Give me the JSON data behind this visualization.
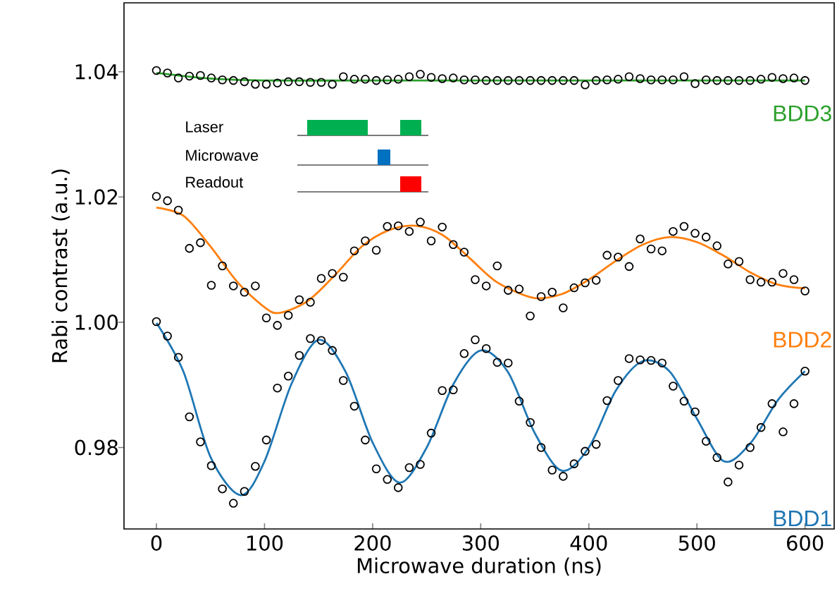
{
  "chart_data": {
    "type": "scatter",
    "xlabel": "Microwave duration (ns)",
    "ylabel": "Rabi contrast (a.u.)",
    "x": [
      0,
      10.2,
      20.3,
      30.5,
      40.7,
      50.8,
      61.0,
      71.2,
      81.4,
      91.5,
      101.7,
      111.9,
      122.0,
      132.2,
      142.4,
      152.5,
      162.7,
      172.9,
      183.1,
      193.2,
      203.4,
      213.6,
      223.7,
      233.9,
      244.1,
      254.2,
      264.4,
      274.6,
      284.7,
      294.9,
      305.1,
      315.3,
      325.4,
      335.6,
      345.8,
      355.9,
      366.1,
      376.3,
      386.4,
      396.6,
      406.8,
      416.9,
      427.1,
      437.3,
      447.5,
      457.6,
      467.8,
      478.0,
      488.1,
      498.3,
      508.5,
      518.6,
      528.8,
      539.0,
      549.2,
      559.3,
      569.5,
      579.7,
      589.8,
      600
    ],
    "series": [
      {
        "marker": "circle",
        "color": "#000000",
        "values": [
          1.0001,
          0.9978,
          0.9944,
          0.9849,
          0.9809,
          0.9771,
          0.9734,
          0.9711,
          0.973,
          0.977,
          0.9812,
          0.9895,
          0.9914,
          0.9947,
          0.9974,
          0.9971,
          0.9955,
          0.9907,
          0.9866,
          0.9812,
          0.9766,
          0.9749,
          0.9736,
          0.9768,
          0.9773,
          0.9823,
          0.9891,
          0.9892,
          0.995,
          0.9972,
          0.9958,
          0.9936,
          0.9935,
          0.9874,
          0.984,
          0.98,
          0.9764,
          0.9754,
          0.9774,
          0.9794,
          0.9805,
          0.9875,
          0.9907,
          0.9942,
          0.994,
          0.9939,
          0.9935,
          0.9898,
          0.9874,
          0.9857,
          0.981,
          0.9784,
          0.9745,
          0.9772,
          0.98,
          0.9832,
          0.987,
          0.9825,
          0.987,
          0.9922
        ]
      },
      {
        "marker": "circle",
        "color": "#000000",
        "values": [
          1.0201,
          1.0194,
          1.0179,
          1.0118,
          1.0127,
          1.0059,
          1.009,
          1.0058,
          1.0048,
          1.0058,
          1.0007,
          0.9995,
          1.0011,
          1.0036,
          1.0032,
          1.007,
          1.0078,
          1.0072,
          1.0114,
          1.013,
          1.0115,
          1.0153,
          1.0154,
          1.0145,
          1.016,
          1.013,
          1.0152,
          1.0124,
          1.0112,
          1.0068,
          1.0058,
          1.009,
          1.0051,
          1.0053,
          1.001,
          1.0041,
          1.0048,
          1.0023,
          1.0055,
          1.0063,
          1.0067,
          1.0107,
          1.0104,
          1.0089,
          1.0133,
          1.0117,
          1.0114,
          1.0145,
          1.0153,
          1.0142,
          1.0136,
          1.0122,
          1.0093,
          1.0097,
          1.0068,
          1.0064,
          1.0064,
          1.0078,
          1.0068,
          1.005
        ]
      },
      {
        "marker": "circle",
        "color": "#000000",
        "values": [
          1.0402,
          1.0398,
          1.039,
          1.0393,
          1.0394,
          1.039,
          1.0387,
          1.0386,
          1.0384,
          1.038,
          1.038,
          1.0382,
          1.0384,
          1.0384,
          1.0383,
          1.0383,
          1.038,
          1.0392,
          1.0388,
          1.0388,
          1.0386,
          1.0387,
          1.0388,
          1.0392,
          1.0396,
          1.0391,
          1.0389,
          1.039,
          1.0387,
          1.0387,
          1.0386,
          1.0386,
          1.0386,
          1.0386,
          1.0386,
          1.0386,
          1.0386,
          1.0386,
          1.0386,
          1.0379,
          1.0386,
          1.0387,
          1.0388,
          1.0392,
          1.0389,
          1.0387,
          1.0387,
          1.0387,
          1.0392,
          1.0381,
          1.0387,
          1.0386,
          1.0386,
          1.0386,
          1.0386,
          1.0388,
          1.0391,
          1.0389,
          1.039,
          1.0386
        ]
      },
      {
        "type": "line",
        "name": "BDD1",
        "color": "#1f77b4",
        "x": [
          0,
          25,
          50,
          78,
          100,
          125,
          150,
          175,
          200,
          225,
          250,
          275,
          300,
          325,
          350,
          375,
          400,
          425,
          450,
          475,
          500,
          525,
          550,
          575,
          600
        ],
        "values": [
          0.9999,
          0.9921,
          0.9785,
          0.9724,
          0.9778,
          0.9902,
          0.9972,
          0.9921,
          0.9808,
          0.9744,
          0.98,
          0.9902,
          0.9955,
          0.9921,
          0.9823,
          0.9763,
          0.98,
          0.9891,
          0.9938,
          0.9921,
          0.9846,
          0.9778,
          0.9808,
          0.9876,
          0.9922
        ]
      },
      {
        "type": "line",
        "name": "BDD2",
        "color": "#ff7f0e",
        "x": [
          0,
          25,
          50,
          75,
          100,
          114,
          140,
          165,
          190,
          215,
          240,
          265,
          290,
          315,
          349,
          375,
          400,
          425,
          450,
          475,
          500,
          525,
          550,
          575,
          600
        ],
        "values": [
          1.0183,
          1.017,
          1.0121,
          1.0064,
          1.0024,
          1.0015,
          1.0034,
          1.0075,
          1.0121,
          1.0147,
          1.0154,
          1.0139,
          1.0102,
          1.0064,
          1.0039,
          1.0045,
          1.0068,
          1.0098,
          1.0124,
          1.0136,
          1.0128,
          1.0106,
          1.0079,
          1.006,
          1.0054
        ]
      },
      {
        "type": "line",
        "name": "BDD3",
        "color": "#2ca02c",
        "x": [
          0,
          50,
          100,
          200,
          300,
          400,
          500,
          600
        ],
        "values": [
          1.0398,
          1.0389,
          1.0386,
          1.0386,
          1.0386,
          1.0386,
          1.0386,
          1.0386
        ]
      }
    ],
    "xlim": [
      -30,
      627
    ],
    "ylim": [
      0.967,
      1.051
    ],
    "xticks": [
      0,
      100,
      200,
      300,
      400,
      500,
      600
    ],
    "yticks": [
      0.98,
      {
        "value": 1.0,
        "label": "1.00"
      },
      1.02,
      1.04
    ],
    "annotations": [
      "Laser",
      "Microwave",
      "Readout"
    ]
  }
}
